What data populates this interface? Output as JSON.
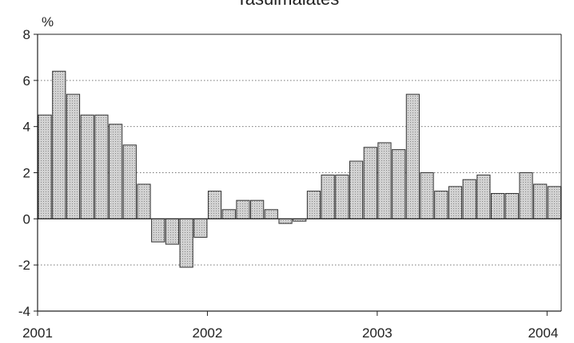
{
  "chart_data": {
    "type": "bar",
    "title": "Tasuimalates",
    "unit_label": "%",
    "ylim": [
      -4,
      8
    ],
    "y_ticks": [
      "8",
      "6",
      "4",
      "2",
      "0",
      "-2",
      "-4"
    ],
    "y_tick_values": [
      8,
      6,
      4,
      2,
      0,
      -2,
      -4
    ],
    "x_tick_labels": [
      "2001",
      "2002",
      "2003",
      "2004"
    ],
    "grid": "dotted horizontal",
    "bar_fill": "#c8c8c8",
    "bar_stroke": "#333333",
    "categories": [
      "2001-01",
      "2001-02",
      "2001-03",
      "2001-04",
      "2001-05",
      "2001-06",
      "2001-07",
      "2001-08",
      "2001-09",
      "2001-10",
      "2001-11",
      "2001-12",
      "2002-01",
      "2002-02",
      "2002-03",
      "2002-04",
      "2002-05",
      "2002-06",
      "2002-07",
      "2002-08",
      "2002-09",
      "2002-10",
      "2002-11",
      "2002-12",
      "2003-01",
      "2003-02",
      "2003-03",
      "2003-04",
      "2003-05",
      "2003-06",
      "2003-07",
      "2003-08",
      "2003-09",
      "2003-10",
      "2003-11",
      "2003-12",
      "2004-01"
    ],
    "values": [
      4.5,
      6.4,
      5.4,
      4.5,
      4.5,
      4.1,
      3.2,
      1.5,
      -1.0,
      -1.1,
      -2.1,
      -0.8,
      1.2,
      0.4,
      0.8,
      0.8,
      0.4,
      -0.2,
      -0.1,
      1.2,
      1.9,
      1.9,
      2.5,
      3.1,
      3.3,
      3.0,
      5.4,
      2.0,
      1.2,
      1.4,
      1.7,
      1.9,
      1.1,
      1.1,
      2.0,
      1.5,
      1.4
    ]
  }
}
